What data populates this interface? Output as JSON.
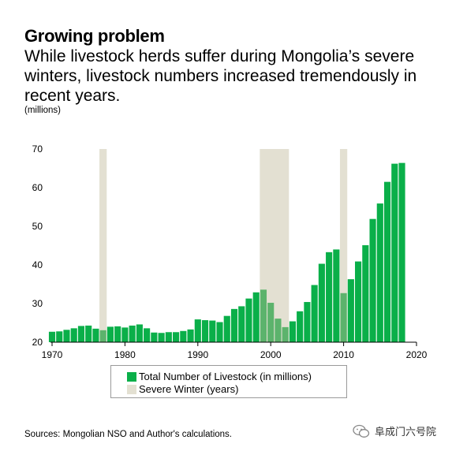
{
  "header": {
    "title": "Growing problem",
    "subtitle": "While livestock herds suffer during Mongolia’s severe winters, livestock numbers increased tremendously in recent years.",
    "units": "(millions)"
  },
  "colors": {
    "bar": "#0aaf49",
    "bar_in_winter": "#5cb36c",
    "winter_band": "#e3e0d2",
    "axis": "#000000"
  },
  "chart_data": {
    "type": "bar",
    "x": [
      1970,
      1971,
      1972,
      1973,
      1974,
      1975,
      1976,
      1977,
      1978,
      1979,
      1980,
      1981,
      1982,
      1983,
      1984,
      1985,
      1986,
      1987,
      1988,
      1989,
      1990,
      1991,
      1992,
      1993,
      1994,
      1995,
      1996,
      1997,
      1998,
      1999,
      2000,
      2001,
      2002,
      2003,
      2004,
      2005,
      2006,
      2007,
      2008,
      2009,
      2010,
      2011,
      2012,
      2013,
      2014,
      2015,
      2016,
      2017,
      2018
    ],
    "values": [
      22.7,
      22.8,
      23.2,
      23.6,
      24.2,
      24.3,
      23.5,
      23.1,
      24.0,
      24.1,
      23.8,
      24.3,
      24.6,
      23.6,
      22.5,
      22.4,
      22.6,
      22.6,
      22.9,
      23.3,
      25.9,
      25.7,
      25.6,
      25.2,
      26.8,
      28.6,
      29.3,
      31.3,
      32.9,
      33.6,
      30.2,
      26.1,
      23.9,
      25.4,
      28.0,
      30.4,
      34.8,
      40.3,
      43.3,
      44.0,
      32.7,
      36.3,
      40.9,
      45.1,
      51.9,
      55.9,
      61.5,
      66.2,
      66.4
    ],
    "series": [
      {
        "name": "Total Number of Livestock (in millions)"
      }
    ],
    "severe_winters": [
      {
        "label": "Severe Winter (years)",
        "ranges": [
          [
            1977,
            1977
          ],
          [
            1999,
            2002
          ],
          [
            2010,
            2010
          ]
        ]
      }
    ],
    "ylim": [
      20,
      70
    ],
    "xlim": [
      1970,
      2020
    ],
    "yticks": [
      20,
      30,
      40,
      50,
      60,
      70
    ],
    "xticks": [
      1970,
      1980,
      1990,
      2000,
      2010,
      2020
    ],
    "grid": false,
    "legend_position": "bottom"
  },
  "legend": {
    "items": [
      {
        "label": "Total Number of Livestock (in millions)",
        "color": "#0aaf49"
      },
      {
        "label": "Severe Winter (years)",
        "color": "#e3e0d2"
      }
    ]
  },
  "footer": {
    "source": "Sources: Mongolian NSO and Author's calculations.",
    "watermark": "阜成门六号院"
  }
}
